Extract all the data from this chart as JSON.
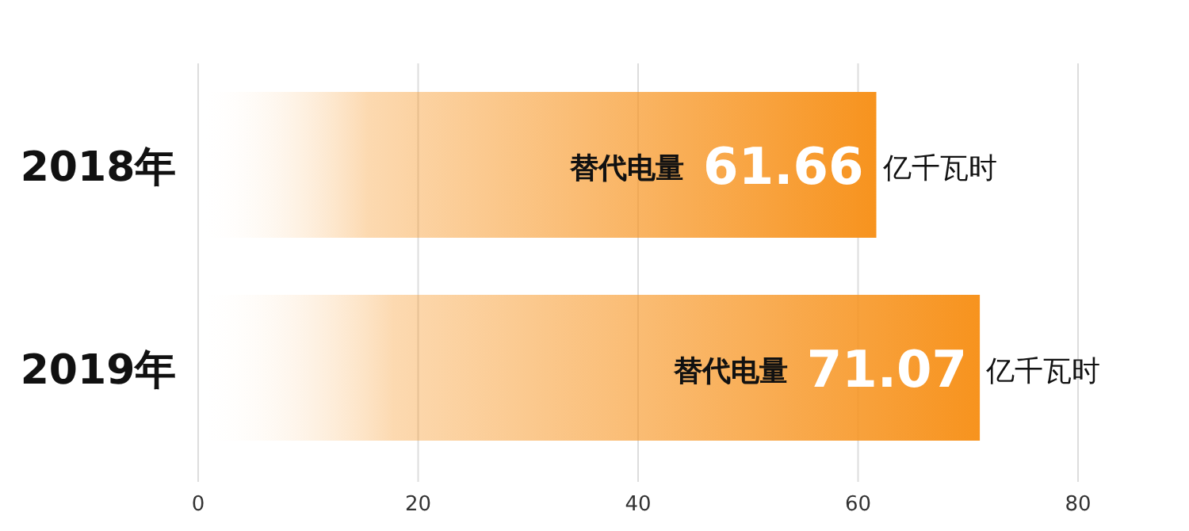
{
  "chart_data": {
    "type": "bar",
    "orientation": "horizontal",
    "categories": [
      "2018年",
      "2019年"
    ],
    "values": [
      61.66,
      71.07
    ],
    "value_labels": [
      "61.66",
      "71.07"
    ],
    "color": "#f7931e",
    "xlim": [
      0,
      80
    ],
    "xticks": [
      0,
      20,
      40,
      60,
      80
    ],
    "grid": "x",
    "annotations": [
      "替代电量",
      {
        "text": "亿千瓦时",
        "x": 61.66,
        "y": "2018年"
      },
      "替代电量",
      {
        "text": "亿千瓦时",
        "x": 71.07,
        "y": "2019年"
      }
    ]
  }
}
